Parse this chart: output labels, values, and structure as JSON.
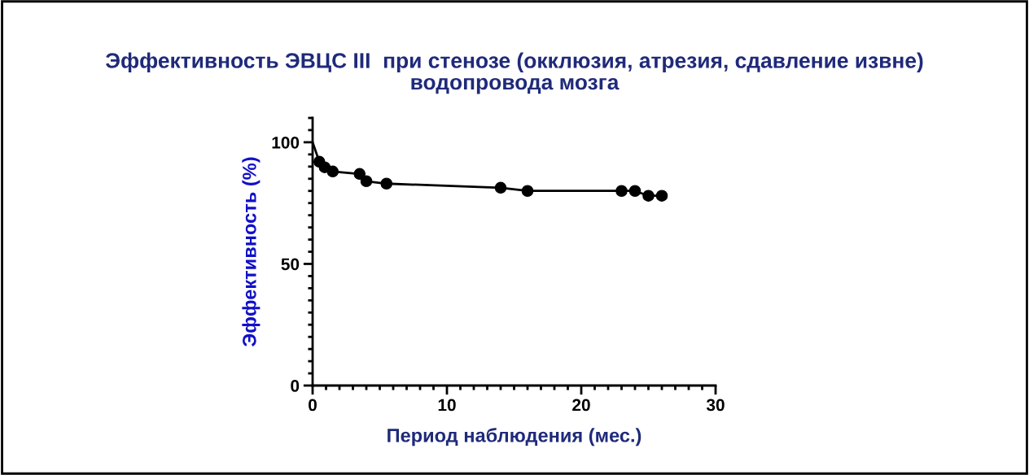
{
  "chart_data": {
    "type": "line",
    "title": "Эффективность ЭВЦС III  при стенозе (окклюзия, атрезия, сдавление извне)\nводопровода мозга",
    "xlabel": "Период наблюдения (мес.)",
    "ylabel": "Эффективность (%)",
    "xlim": [
      0,
      30
    ],
    "xticks": [
      0,
      10,
      20,
      30
    ],
    "ylim": [
      0,
      110
    ],
    "yticks": [
      0,
      50,
      100
    ],
    "grid": false,
    "legend": false,
    "series": [
      {
        "color": "#000000",
        "marker": "none",
        "x": [
          0,
          0.5,
          0.9,
          1.5,
          3.5,
          4,
          5.5,
          14,
          16,
          23,
          24,
          25,
          26
        ],
        "values": [
          100,
          92,
          89.7,
          88,
          87,
          84,
          83,
          81.3,
          80,
          80,
          80,
          78,
          78
        ]
      },
      {
        "type": "scatter",
        "color": "#000000",
        "marker": "circle",
        "x": [
          0.5,
          0.9,
          1.5,
          3.5,
          4,
          5.5,
          14,
          16,
          23,
          24,
          25,
          26
        ],
        "values": [
          92,
          89.7,
          88,
          87,
          84,
          83,
          81.3,
          80,
          80,
          80,
          78,
          78
        ]
      }
    ]
  }
}
